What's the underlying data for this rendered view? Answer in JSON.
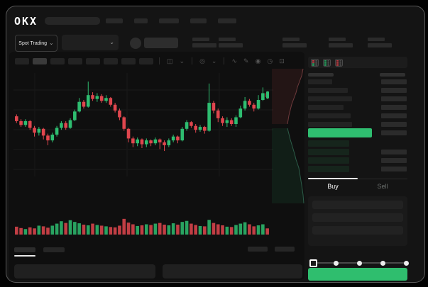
{
  "brand": "OKX",
  "market_selector": {
    "label": "Spot Trading"
  },
  "icons": {
    "chevron_down": "⌄"
  },
  "trade_panel": {
    "buy_label": "Buy",
    "sell_label": "Sell"
  },
  "colors": {
    "up": "#2EBD70",
    "down": "#E0464E",
    "buy_button": "#2FBE6E",
    "bid_row_tint": "#16251C",
    "last_price_bar": "#2FBE70",
    "window_bg": "#141414",
    "chart_bg": "#0F0F0F"
  },
  "order_book": {
    "ask_rows": 6,
    "bid_rows": 4,
    "last_price_side": "up",
    "view_modes": [
      "split",
      "bids-only",
      "asks-only"
    ]
  },
  "trade_form": {
    "slider_steps": 5,
    "slider_active_step": 0
  },
  "chart_data": {
    "type": "candlestick",
    "price_axis_labels_visible": false,
    "time_axis_labels_visible": false,
    "scale_note": "relative 0-100 price units read from pixel positions",
    "candles_ohlc": [
      [
        58,
        60,
        51,
        53
      ],
      [
        53,
        55,
        47,
        49
      ],
      [
        49,
        55,
        47,
        53
      ],
      [
        53,
        54,
        44,
        46
      ],
      [
        46,
        48,
        37,
        41
      ],
      [
        41,
        47,
        38,
        45
      ],
      [
        45,
        46,
        34,
        38
      ],
      [
        38,
        40,
        28,
        33
      ],
      [
        33,
        41,
        31,
        39
      ],
      [
        39,
        48,
        37,
        46
      ],
      [
        46,
        53,
        44,
        51
      ],
      [
        51,
        53,
        44,
        46
      ],
      [
        46,
        56,
        45,
        54
      ],
      [
        54,
        65,
        53,
        63
      ],
      [
        63,
        77,
        62,
        73
      ],
      [
        73,
        75,
        66,
        68
      ],
      [
        68,
        94,
        67,
        80
      ],
      [
        80,
        83,
        74,
        76
      ],
      [
        76,
        82,
        73,
        79
      ],
      [
        79,
        81,
        72,
        74
      ],
      [
        74,
        80,
        72,
        77
      ],
      [
        77,
        78,
        68,
        70
      ],
      [
        70,
        72,
        62,
        64
      ],
      [
        64,
        66,
        54,
        57
      ],
      [
        57,
        58,
        43,
        45
      ],
      [
        45,
        46,
        31,
        35
      ],
      [
        35,
        37,
        26,
        30
      ],
      [
        30,
        36,
        27,
        34
      ],
      [
        34,
        35,
        25,
        29
      ],
      [
        29,
        35,
        26,
        33
      ],
      [
        33,
        34,
        27,
        30
      ],
      [
        30,
        36,
        28,
        34
      ],
      [
        34,
        35,
        24,
        31
      ],
      [
        31,
        33,
        22,
        28
      ],
      [
        28,
        35,
        26,
        33
      ],
      [
        33,
        39,
        31,
        37
      ],
      [
        37,
        38,
        30,
        33
      ],
      [
        33,
        47,
        32,
        45
      ],
      [
        45,
        54,
        43,
        52
      ],
      [
        52,
        53,
        46,
        48
      ],
      [
        48,
        50,
        41,
        44
      ],
      [
        44,
        49,
        42,
        47
      ],
      [
        47,
        48,
        40,
        43
      ],
      [
        43,
        92,
        42,
        72
      ],
      [
        72,
        74,
        61,
        64
      ],
      [
        64,
        66,
        52,
        56
      ],
      [
        56,
        58,
        48,
        51
      ],
      [
        51,
        57,
        47,
        54
      ],
      [
        54,
        56,
        48,
        50
      ],
      [
        50,
        59,
        47,
        57
      ],
      [
        57,
        69,
        56,
        66
      ],
      [
        66,
        78,
        64,
        74
      ],
      [
        74,
        76,
        68,
        70
      ],
      [
        70,
        72,
        63,
        66
      ],
      [
        66,
        80,
        65,
        75
      ],
      [
        75,
        88,
        74,
        82
      ],
      [
        82,
        84,
        76,
        78
      ]
    ],
    "volume": [
      38,
      30,
      24,
      34,
      28,
      44,
      40,
      32,
      44,
      56,
      70,
      60,
      76,
      66,
      58,
      50,
      46,
      56,
      48,
      44,
      40,
      36,
      34,
      44,
      84,
      62,
      52,
      42,
      46,
      52,
      48,
      56,
      60,
      50,
      46,
      58,
      50,
      66,
      72,
      56,
      48,
      42,
      40,
      78,
      60,
      52,
      46,
      38,
      36,
      48,
      56,
      64,
      52,
      40,
      46,
      52,
      28
    ],
    "depth_overlay": {
      "asks_side": "top",
      "bids_side": "bottom",
      "orientation": "vertical"
    }
  }
}
